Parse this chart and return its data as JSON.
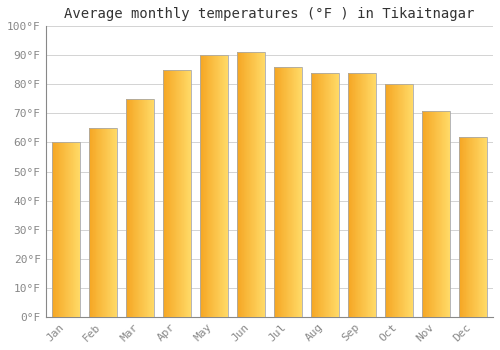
{
  "title": "Average monthly temperatures (°F ) in Tikaitnagar",
  "months": [
    "Jan",
    "Feb",
    "Mar",
    "Apr",
    "May",
    "Jun",
    "Jul",
    "Aug",
    "Sep",
    "Oct",
    "Nov",
    "Dec"
  ],
  "values": [
    60,
    65,
    75,
    85,
    90,
    91,
    86,
    84,
    84,
    80,
    71,
    62
  ],
  "bar_color_left": "#F5A623",
  "bar_color_right": "#FFD966",
  "bar_edge_color": "#AAAAAA",
  "ylim": [
    0,
    100
  ],
  "ytick_step": 10,
  "background_color": "#FFFFFF",
  "grid_color": "#CCCCCC",
  "title_fontsize": 10,
  "tick_fontsize": 8,
  "bar_width": 0.75,
  "gradient_steps": 50
}
